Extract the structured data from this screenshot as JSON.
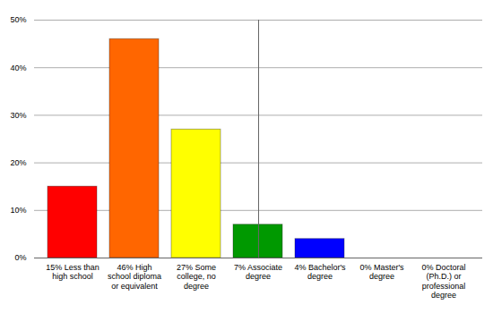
{
  "chart_data": {
    "type": "bar",
    "categories": [
      "15% Less than high school",
      "46% High school diploma or equivalent",
      "27% Some college, no degree",
      "7% Associate degree",
      "4% Bachelor's degree",
      "0% Master's degree",
      "0% Doctoral (Ph.D.) or professional degree"
    ],
    "values": [
      15,
      46,
      27,
      7,
      4,
      0,
      0
    ],
    "colors": [
      "#ff0000",
      "#ff6600",
      "#ffff00",
      "#009900",
      "#0000ff",
      "#9900ff",
      "#ff00ff"
    ],
    "ylim": [
      0,
      50
    ],
    "yticks": [
      {
        "value": 0,
        "label": "0%"
      },
      {
        "value": 10,
        "label": "10%"
      },
      {
        "value": 20,
        "label": "20%"
      },
      {
        "value": 30,
        "label": "30%"
      },
      {
        "value": 40,
        "label": "40%"
      },
      {
        "value": 50,
        "label": "50%"
      }
    ],
    "grid": true
  }
}
